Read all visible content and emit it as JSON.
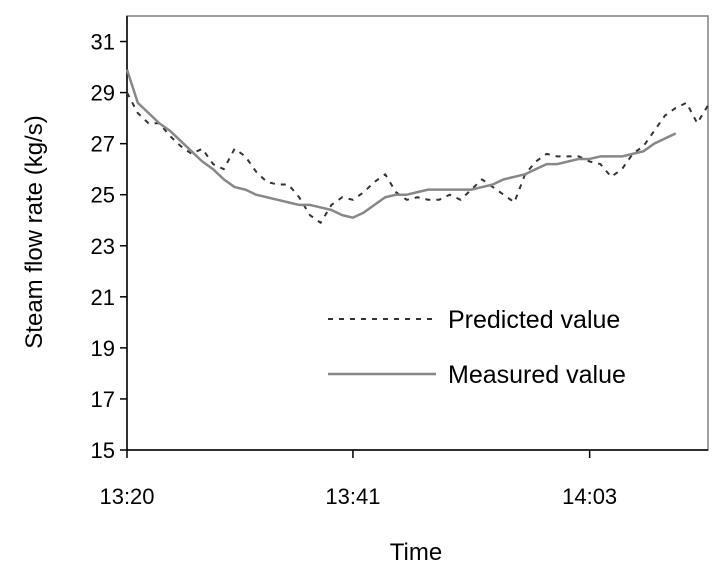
{
  "chart_data": {
    "type": "line",
    "xlabel": "Time",
    "ylabel": "Steam flow rate (kg/s)",
    "x_tick_labels": [
      "13:20",
      "13:41",
      "14:03"
    ],
    "x_tick_minutes": [
      0,
      21,
      43
    ],
    "xlim_minutes": [
      0,
      54
    ],
    "ylim": [
      15,
      32
    ],
    "y_ticks": [
      15,
      17,
      19,
      21,
      23,
      25,
      27,
      29,
      31
    ],
    "grid": false,
    "legend_position": "lower-right",
    "series": [
      {
        "name": "Predicted value",
        "style": "dotted",
        "color": "#333333",
        "x_minutes": [
          0,
          1,
          2,
          3,
          4,
          5,
          6,
          7,
          8,
          9,
          10,
          11,
          12,
          13,
          14,
          15,
          16,
          17,
          18,
          19,
          20,
          21,
          22,
          23,
          24,
          25,
          26,
          27,
          28,
          29,
          30,
          31,
          32,
          33,
          34,
          35,
          36,
          37,
          38,
          39,
          40,
          41,
          42,
          43,
          44,
          45,
          46,
          47,
          48,
          49,
          50,
          51,
          52,
          53,
          54
        ],
        "values": [
          29.0,
          28.2,
          27.8,
          27.8,
          27.3,
          26.9,
          26.6,
          26.8,
          26.2,
          26.0,
          26.8,
          26.5,
          25.9,
          25.5,
          25.4,
          25.4,
          24.9,
          24.2,
          23.9,
          24.6,
          24.9,
          24.8,
          25.1,
          25.5,
          25.8,
          25.1,
          24.8,
          24.9,
          24.8,
          24.8,
          25.0,
          24.8,
          25.2,
          25.6,
          25.3,
          25.0,
          24.7,
          25.8,
          26.3,
          26.6,
          26.5,
          26.5,
          26.5,
          26.3,
          26.2,
          25.7,
          26.0,
          26.6,
          26.9,
          27.5,
          28.1,
          28.4,
          28.6,
          27.8,
          28.5
        ]
      },
      {
        "name": "Measured value",
        "style": "solid",
        "color": "#888888",
        "x_minutes": [
          0,
          1,
          2,
          3,
          4,
          5,
          6,
          7,
          8,
          9,
          10,
          11,
          12,
          13,
          14,
          15,
          16,
          17,
          18,
          19,
          20,
          21,
          22,
          23,
          24,
          25,
          26,
          27,
          28,
          29,
          30,
          31,
          32,
          33,
          34,
          35,
          36,
          37,
          38,
          39,
          40,
          41,
          42,
          43,
          44,
          45,
          46,
          47,
          48,
          49,
          50,
          51
        ],
        "values": [
          29.9,
          28.6,
          28.2,
          27.8,
          27.5,
          27.1,
          26.7,
          26.3,
          26.0,
          25.6,
          25.3,
          25.2,
          25.0,
          24.9,
          24.8,
          24.7,
          24.6,
          24.6,
          24.5,
          24.4,
          24.2,
          24.1,
          24.3,
          24.6,
          24.9,
          25.0,
          25.0,
          25.1,
          25.2,
          25.2,
          25.2,
          25.2,
          25.2,
          25.3,
          25.4,
          25.6,
          25.7,
          25.8,
          26.0,
          26.2,
          26.2,
          26.3,
          26.4,
          26.4,
          26.5,
          26.5,
          26.5,
          26.6,
          26.7,
          27.0,
          27.2,
          27.4
        ]
      }
    ]
  }
}
